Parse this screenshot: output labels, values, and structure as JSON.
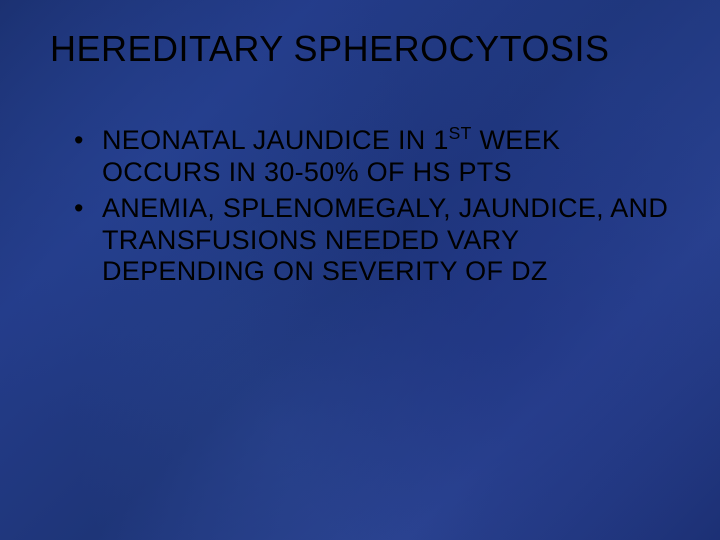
{
  "slide": {
    "title": "HEREDITARY SPHEROCYTOSIS",
    "bullets": [
      {
        "pre": "NEONATAL JAUNDICE IN 1",
        "sup": "ST",
        "post": " WEEK OCCURS IN 30-50% OF HS PTS"
      },
      {
        "pre": "ANEMIA, SPLENOMEGALY, JAUNDICE, AND TRANSFUSIONS NEEDED VARY DEPENDING ON SEVERITY OF DZ",
        "sup": "",
        "post": ""
      }
    ],
    "style": {
      "background_base": "#1e3a8a",
      "text_color": "#000000",
      "title_fontsize": 36,
      "body_fontsize": 27,
      "font_family": "Arial"
    }
  }
}
